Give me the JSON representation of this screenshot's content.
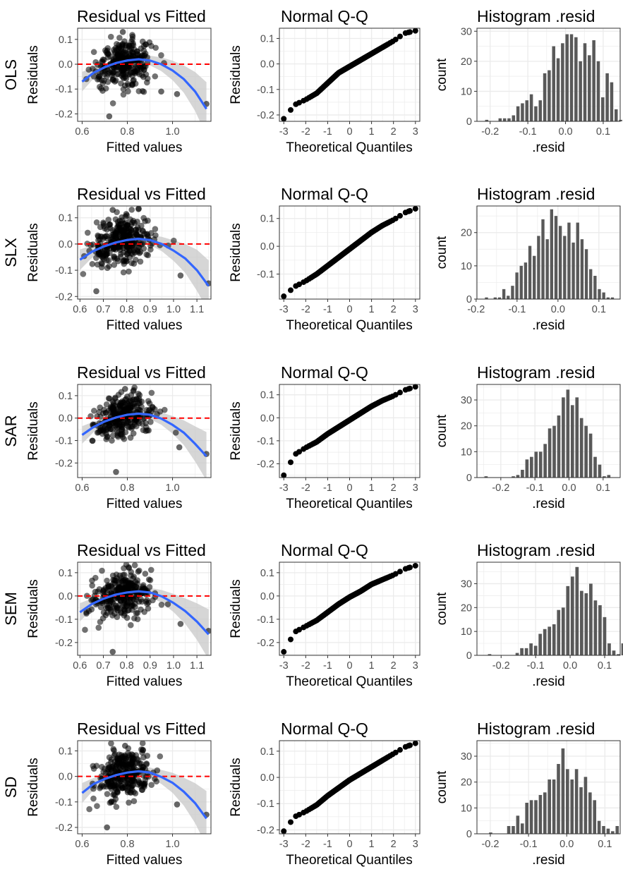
{
  "rows": [
    {
      "label": "OLS"
    },
    {
      "label": "SLX"
    },
    {
      "label": "SAR"
    },
    {
      "label": "SEM"
    },
    {
      "label": "SD"
    }
  ],
  "panel_titles": {
    "resid_fitted": "Residual vs Fitted",
    "qq": "Normal Q-Q",
    "hist": "Histogram .resid"
  },
  "axis_labels": {
    "fitted_x": "Fitted values",
    "fitted_y": "Residuals",
    "qq_x": "Theoretical Quantiles",
    "qq_y": "Residuals",
    "hist_x": ".resid",
    "hist_y": "count"
  },
  "colors": {
    "points": "#000000",
    "smooth_line": "#3366FF",
    "smooth_band": "#C8C8C8",
    "zero_line": "#FF0000",
    "bars": "#595959",
    "grid": "#EBEBEB",
    "panel_border": "#333333"
  },
  "chart_data": [
    {
      "model": "OLS",
      "type": "scatter",
      "title": "Residual vs Fitted",
      "xlabel": "Fitted values",
      "ylabel": "Residuals",
      "xlim": [
        0.58,
        1.17
      ],
      "ylim": [
        -0.23,
        0.145
      ],
      "xticks": [
        0.6,
        0.8,
        1.0
      ],
      "yticks": [
        -0.2,
        -0.1,
        0.0,
        0.1
      ],
      "zero_line": 0.0,
      "smooth": {
        "x": [
          0.6,
          0.65,
          0.7,
          0.75,
          0.8,
          0.85,
          0.9,
          0.95,
          1.0,
          1.05,
          1.1,
          1.15
        ],
        "y": [
          -0.07,
          -0.035,
          -0.012,
          0.005,
          0.015,
          0.02,
          0.015,
          0.0,
          -0.025,
          -0.06,
          -0.11,
          -0.18
        ],
        "se": [
          0.02,
          0.012,
          0.008,
          0.006,
          0.006,
          0.007,
          0.01,
          0.014,
          0.02,
          0.028,
          0.04,
          0.055
        ]
      },
      "outliers": [
        {
          "x": 0.72,
          "y": -0.21
        },
        {
          "x": 1.02,
          "y": -0.12
        },
        {
          "x": 1.15,
          "y": -0.16
        },
        {
          "x": 0.95,
          "y": -0.11
        },
        {
          "x": 0.78,
          "y": 0.13
        }
      ],
      "cloud": {
        "x_center": 0.78,
        "x_spread": 0.06,
        "y_spread": 0.055,
        "n": 300
      },
      "grid": true
    },
    {
      "model": "SLX",
      "type": "scatter",
      "title": "Residual vs Fitted",
      "xlabel": "Fitted values",
      "ylabel": "Residuals",
      "xlim": [
        0.59,
        1.16
      ],
      "ylim": [
        -0.21,
        0.145
      ],
      "xticks": [
        0.6,
        0.7,
        0.8,
        0.9,
        1.0,
        1.1
      ],
      "yticks": [
        -0.2,
        -0.1,
        0.0,
        0.1
      ],
      "zero_line": 0.0,
      "smooth": {
        "x": [
          0.6,
          0.65,
          0.7,
          0.75,
          0.8,
          0.85,
          0.9,
          0.95,
          1.0,
          1.05,
          1.1,
          1.15
        ],
        "y": [
          -0.06,
          -0.03,
          -0.01,
          0.005,
          0.015,
          0.02,
          0.015,
          0.0,
          -0.025,
          -0.055,
          -0.1,
          -0.16
        ],
        "se": [
          0.02,
          0.012,
          0.008,
          0.006,
          0.006,
          0.007,
          0.01,
          0.014,
          0.02,
          0.028,
          0.04,
          0.05
        ]
      },
      "outliers": [
        {
          "x": 0.67,
          "y": -0.18
        },
        {
          "x": 1.15,
          "y": -0.15
        },
        {
          "x": 1.03,
          "y": -0.12
        },
        {
          "x": 0.74,
          "y": 0.13
        }
      ],
      "cloud": {
        "x_center": 0.78,
        "x_spread": 0.065,
        "y_spread": 0.055,
        "n": 320
      },
      "grid": true
    },
    {
      "model": "SAR",
      "type": "scatter",
      "title": "Residual vs Fitted",
      "xlabel": "Fitted values",
      "ylabel": "Residuals",
      "xlim": [
        0.58,
        1.17
      ],
      "ylim": [
        -0.265,
        0.15
      ],
      "xticks": [
        0.6,
        0.8,
        1.0
      ],
      "yticks": [
        -0.2,
        -0.1,
        0.0,
        0.1
      ],
      "zero_line": 0.0,
      "smooth": {
        "x": [
          0.6,
          0.65,
          0.7,
          0.75,
          0.8,
          0.85,
          0.9,
          0.95,
          1.0,
          1.05,
          1.1,
          1.15
        ],
        "y": [
          -0.075,
          -0.04,
          -0.015,
          0.003,
          0.015,
          0.02,
          0.015,
          -0.002,
          -0.03,
          -0.065,
          -0.115,
          -0.17
        ],
        "se": [
          0.02,
          0.012,
          0.008,
          0.006,
          0.006,
          0.007,
          0.01,
          0.014,
          0.02,
          0.028,
          0.04,
          0.055
        ]
      },
      "outliers": [
        {
          "x": 0.75,
          "y": -0.24
        },
        {
          "x": 1.15,
          "y": -0.16
        },
        {
          "x": 1.03,
          "y": -0.13
        },
        {
          "x": 0.79,
          "y": 0.13
        }
      ],
      "cloud": {
        "x_center": 0.78,
        "x_spread": 0.06,
        "y_spread": 0.055,
        "n": 300
      },
      "grid": true
    },
    {
      "model": "SEM",
      "type": "scatter",
      "title": "Residual vs Fitted",
      "xlabel": "Fitted values",
      "ylabel": "Residuals",
      "xlim": [
        0.59,
        1.16
      ],
      "ylim": [
        -0.255,
        0.145
      ],
      "xticks": [
        0.6,
        0.7,
        0.8,
        0.9,
        1.0,
        1.1
      ],
      "yticks": [
        -0.2,
        -0.1,
        0.0,
        0.1
      ],
      "zero_line": 0.0,
      "smooth": {
        "x": [
          0.6,
          0.65,
          0.7,
          0.75,
          0.8,
          0.85,
          0.9,
          0.95,
          1.0,
          1.05,
          1.1,
          1.15
        ],
        "y": [
          -0.07,
          -0.035,
          -0.012,
          0.005,
          0.015,
          0.02,
          0.015,
          -0.002,
          -0.03,
          -0.065,
          -0.11,
          -0.165
        ],
        "se": [
          0.02,
          0.012,
          0.008,
          0.006,
          0.006,
          0.007,
          0.01,
          0.014,
          0.02,
          0.028,
          0.04,
          0.055
        ]
      },
      "outliers": [
        {
          "x": 0.74,
          "y": -0.24
        },
        {
          "x": 1.15,
          "y": -0.15
        },
        {
          "x": 1.03,
          "y": -0.12
        },
        {
          "x": 0.81,
          "y": 0.12
        }
      ],
      "cloud": {
        "x_center": 0.79,
        "x_spread": 0.065,
        "y_spread": 0.055,
        "n": 300
      },
      "grid": true
    },
    {
      "model": "SD",
      "type": "scatter",
      "title": "Residual vs Fitted",
      "xlabel": "Fitted values",
      "ylabel": "Residuals",
      "xlim": [
        0.58,
        1.17
      ],
      "ylim": [
        -0.225,
        0.14
      ],
      "xticks": [
        0.6,
        0.8,
        1.0
      ],
      "yticks": [
        -0.2,
        -0.1,
        0.0,
        0.1
      ],
      "zero_line": 0.0,
      "smooth": {
        "x": [
          0.6,
          0.65,
          0.7,
          0.75,
          0.8,
          0.85,
          0.9,
          0.95,
          1.0,
          1.05,
          1.1,
          1.15
        ],
        "y": [
          -0.065,
          -0.03,
          -0.01,
          0.005,
          0.015,
          0.02,
          0.015,
          -0.002,
          -0.025,
          -0.06,
          -0.105,
          -0.165
        ],
        "se": [
          0.02,
          0.012,
          0.008,
          0.006,
          0.006,
          0.007,
          0.01,
          0.014,
          0.02,
          0.028,
          0.04,
          0.055
        ]
      },
      "outliers": [
        {
          "x": 0.71,
          "y": -0.2
        },
        {
          "x": 1.15,
          "y": -0.15
        },
        {
          "x": 1.02,
          "y": -0.11
        },
        {
          "x": 0.79,
          "y": 0.12
        }
      ],
      "cloud": {
        "x_center": 0.78,
        "x_spread": 0.06,
        "y_spread": 0.055,
        "n": 300
      },
      "grid": true
    },
    {
      "model": "OLS",
      "type": "scatter",
      "title": "Normal Q-Q",
      "xlabel": "Theoretical Quantiles",
      "ylabel": "Residuals",
      "xlim": [
        -3.2,
        3.2
      ],
      "ylim": [
        -0.225,
        0.14
      ],
      "xticks": [
        -3,
        -2,
        -1,
        0,
        1,
        2,
        3
      ],
      "yticks": [
        -0.2,
        -0.1,
        0.0,
        0.1
      ],
      "quantile_curve": {
        "x": [
          -3.0,
          -2.5,
          -2.0,
          -1.5,
          -1.0,
          -0.5,
          0.0,
          0.5,
          1.0,
          1.5,
          2.0,
          2.5,
          3.0
        ],
        "y": [
          -0.215,
          -0.16,
          -0.14,
          -0.115,
          -0.075,
          -0.035,
          -0.01,
          0.015,
          0.04,
          0.065,
          0.09,
          0.12,
          0.13
        ]
      },
      "grid": true
    },
    {
      "model": "SLX",
      "type": "scatter",
      "title": "Normal Q-Q",
      "xlabel": "Theoretical Quantiles",
      "ylabel": "Residuals",
      "xlim": [
        -3.2,
        3.2
      ],
      "ylim": [
        -0.19,
        0.145
      ],
      "xticks": [
        -3,
        -2,
        -1,
        0,
        1,
        2,
        3
      ],
      "yticks": [
        -0.1,
        0.0,
        0.1
      ],
      "quantile_curve": {
        "x": [
          -3.0,
          -2.5,
          -2.0,
          -1.5,
          -1.0,
          -0.5,
          0.0,
          0.5,
          1.0,
          1.5,
          2.0,
          2.5,
          3.0
        ],
        "y": [
          -0.18,
          -0.145,
          -0.125,
          -0.1,
          -0.07,
          -0.04,
          -0.01,
          0.02,
          0.05,
          0.075,
          0.095,
          0.12,
          0.135
        ]
      },
      "grid": true
    },
    {
      "model": "SAR",
      "type": "scatter",
      "title": "Normal Q-Q",
      "xlabel": "Theoretical Quantiles",
      "ylabel": "Residuals",
      "xlim": [
        -3.2,
        3.2
      ],
      "ylim": [
        -0.26,
        0.145
      ],
      "xticks": [
        -3,
        -2,
        -1,
        0,
        1,
        2,
        3
      ],
      "yticks": [
        -0.2,
        -0.1,
        0.0,
        0.1
      ],
      "quantile_curve": {
        "x": [
          -3.0,
          -2.5,
          -2.0,
          -1.5,
          -1.0,
          -0.5,
          0.0,
          0.5,
          1.0,
          1.5,
          2.0,
          2.5,
          3.0
        ],
        "y": [
          -0.25,
          -0.16,
          -0.13,
          -0.105,
          -0.07,
          -0.04,
          -0.01,
          0.02,
          0.05,
          0.075,
          0.095,
          0.12,
          0.135
        ]
      },
      "grid": true
    },
    {
      "model": "SEM",
      "type": "scatter",
      "title": "Normal Q-Q",
      "xlabel": "Theoretical Quantiles",
      "ylabel": "Residuals",
      "xlim": [
        -3.2,
        3.2
      ],
      "ylim": [
        -0.255,
        0.145
      ],
      "xticks": [
        -3,
        -2,
        -1,
        0,
        1,
        2,
        3
      ],
      "yticks": [
        -0.2,
        -0.1,
        0.0,
        0.1
      ],
      "quantile_curve": {
        "x": [
          -3.0,
          -2.5,
          -2.0,
          -1.5,
          -1.0,
          -0.5,
          0.0,
          0.5,
          1.0,
          1.5,
          2.0,
          2.5,
          3.0
        ],
        "y": [
          -0.24,
          -0.155,
          -0.13,
          -0.105,
          -0.07,
          -0.035,
          -0.005,
          0.02,
          0.05,
          0.07,
          0.09,
          0.115,
          0.13
        ]
      },
      "grid": true
    },
    {
      "model": "SD",
      "type": "scatter",
      "title": "Normal Q-Q",
      "xlabel": "Theoretical Quantiles",
      "ylabel": "Residuals",
      "xlim": [
        -3.2,
        3.2
      ],
      "ylim": [
        -0.215,
        0.14
      ],
      "xticks": [
        -3,
        -2,
        -1,
        0,
        1,
        2,
        3
      ],
      "yticks": [
        -0.2,
        -0.1,
        0.0,
        0.1
      ],
      "quantile_curve": {
        "x": [
          -3.0,
          -2.5,
          -2.0,
          -1.5,
          -1.0,
          -0.5,
          0.0,
          0.5,
          1.0,
          1.5,
          2.0,
          2.5,
          3.0
        ],
        "y": [
          -0.205,
          -0.15,
          -0.13,
          -0.105,
          -0.07,
          -0.04,
          -0.01,
          0.015,
          0.04,
          0.065,
          0.09,
          0.115,
          0.13
        ]
      },
      "grid": true
    },
    {
      "model": "OLS",
      "type": "bar",
      "title": "Histogram .resid",
      "xlabel": ".resid",
      "ylabel": "count",
      "xlim": [
        -0.235,
        0.145
      ],
      "ylim": [
        0,
        31
      ],
      "xticks": [
        -0.2,
        -0.1,
        0.0,
        0.1
      ],
      "yticks": [
        0,
        10,
        20,
        30
      ],
      "bin_start": -0.215,
      "bin_width": 0.01184,
      "values": [
        0.5,
        0,
        0,
        1,
        1,
        1,
        2,
        5,
        6,
        7,
        9,
        5,
        7,
        16,
        17,
        25,
        21,
        26,
        29,
        29,
        28,
        20,
        26,
        22,
        27,
        20,
        8,
        16,
        13,
        4,
        0.5
      ]
    },
    {
      "model": "SLX",
      "type": "bar",
      "title": "Histogram .resid",
      "xlabel": ".resid",
      "ylabel": "count",
      "xlim": [
        -0.198,
        0.152
      ],
      "ylim": [
        0,
        28
      ],
      "xticks": [
        -0.2,
        -0.1,
        0.0,
        0.1
      ],
      "yticks": [
        0,
        10,
        20
      ],
      "bin_start": -0.18,
      "bin_width": 0.01061,
      "values": [
        0.5,
        0,
        0.5,
        0.5,
        3,
        1,
        4,
        8,
        10,
        11,
        16,
        13,
        19,
        24,
        18,
        27,
        25,
        22,
        19,
        23,
        17,
        23,
        18,
        15,
        9,
        7,
        3,
        2,
        0.5,
        0.5
      ]
    },
    {
      "model": "SAR",
      "type": "bar",
      "title": "Histogram .resid",
      "xlabel": ".resid",
      "ylabel": "count",
      "xlim": [
        -0.27,
        0.15
      ],
      "ylim": [
        0,
        36
      ],
      "xticks": [
        -0.2,
        -0.1,
        0.0,
        0.1
      ],
      "yticks": [
        0,
        10,
        20,
        30
      ],
      "bin_start": -0.25,
      "bin_width": 0.01333,
      "values": [
        0.5,
        0,
        0,
        0,
        0,
        0,
        0.5,
        1,
        3,
        7,
        8,
        10,
        10,
        13,
        19,
        20,
        24,
        31,
        34,
        28,
        31,
        23,
        20,
        17,
        8,
        5,
        0.5,
        1
      ]
    },
    {
      "model": "SEM",
      "type": "bar",
      "title": "Histogram .resid",
      "xlabel": ".resid",
      "ylabel": "count",
      "xlim": [
        -0.27,
        0.145
      ],
      "ylim": [
        0,
        39
      ],
      "xticks": [
        -0.2,
        -0.1,
        0.0,
        0.1
      ],
      "yticks": [
        0,
        10,
        20,
        30
      ],
      "bin_start": -0.24,
      "bin_width": 0.01333,
      "values": [
        0.5,
        0,
        0,
        0,
        0,
        0,
        1,
        3,
        3,
        5,
        4,
        9,
        11,
        12,
        13,
        19,
        20,
        29,
        33,
        37,
        27,
        26,
        30,
        23,
        21,
        16,
        5,
        2,
        0.5,
        5
      ]
    },
    {
      "model": "SD",
      "type": "bar",
      "title": "Histogram .resid",
      "xlabel": ".resid",
      "ylabel": "count",
      "xlim": [
        -0.235,
        0.14
      ],
      "ylim": [
        0,
        36
      ],
      "xticks": [
        -0.2,
        -0.1,
        0.0,
        0.1
      ],
      "yticks": [
        0,
        10,
        20,
        30
      ],
      "bin_start": -0.205,
      "bin_width": 0.01183,
      "values": [
        0.5,
        0,
        0,
        0,
        3,
        3,
        7,
        4,
        12,
        13,
        13,
        15,
        16,
        21,
        21,
        27,
        33,
        25,
        21,
        25,
        18,
        22,
        16,
        13,
        5,
        3,
        2,
        1,
        3
      ]
    }
  ]
}
